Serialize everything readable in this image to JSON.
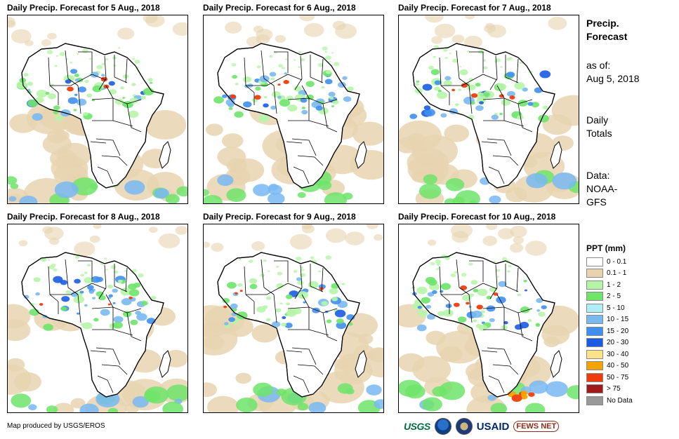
{
  "panels": [
    {
      "title": "Daily Precip. Forecast for 5 Aug., 2018"
    },
    {
      "title": "Daily Precip. Forecast for 6 Aug., 2018"
    },
    {
      "title": "Daily Precip. Forecast for 7 Aug., 2018"
    },
    {
      "title": "Daily Precip. Forecast for 8 Aug., 2018"
    },
    {
      "title": "Daily Precip. Forecast for 9 Aug., 2018"
    },
    {
      "title": "Daily Precip. Forecast for 10 Aug., 2018"
    }
  ],
  "sidebar": {
    "title_line1": "Precip.",
    "title_line2": "Forecast",
    "asof_line1": "as of:",
    "asof_line2": "Aug 5, 2018",
    "totals_line1": "Daily",
    "totals_line2": "Totals",
    "data_line1": "Data:",
    "data_line2": "NOAA-",
    "data_line3": "GFS"
  },
  "legend": {
    "title": "PPT (mm)",
    "items": [
      {
        "label": "0 - 0.1",
        "color": "#ffffff"
      },
      {
        "label": "0.1 - 1",
        "color": "#e8d3b0"
      },
      {
        "label": "1 - 2",
        "color": "#b5f5a8"
      },
      {
        "label": "2 - 5",
        "color": "#6ee46a"
      },
      {
        "label": "5 - 10",
        "color": "#b0eef5"
      },
      {
        "label": "10 - 15",
        "color": "#79b9f2"
      },
      {
        "label": "15 - 20",
        "color": "#3f8ff0"
      },
      {
        "label": "20 - 30",
        "color": "#1a5be6"
      },
      {
        "label": "30 - 40",
        "color": "#fce38a"
      },
      {
        "label": "40 - 50",
        "color": "#f5a300"
      },
      {
        "label": "50 - 75",
        "color": "#f03c0a"
      },
      {
        "label": "> 75",
        "color": "#a01a1a"
      },
      {
        "label": "No Data",
        "color": "#999999"
      }
    ]
  },
  "credit": "Map produced by USGS/EROS",
  "logos": {
    "usgs": "USGS",
    "usaid": "USAID",
    "fews": "FEWS NET"
  }
}
